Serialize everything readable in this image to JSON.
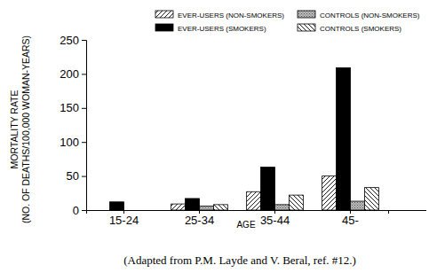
{
  "chart_data": {
    "type": "bar",
    "categories": [
      "15-24",
      "25-34",
      "35-44",
      "45-"
    ],
    "series": [
      {
        "name": "EVER-USERS (NON-SMOKERS)",
        "color": "#000000",
        "line_style": "forward-hatch",
        "values": [
          0,
          9,
          27,
          50
        ]
      },
      {
        "name": "EVER-USERS (SMOKERS)",
        "color": "#000000",
        "line_style": "solid",
        "values": [
          12,
          17,
          63,
          209
        ]
      },
      {
        "name": "CONTROLS (NON-SMOKERS)",
        "color": "#555555",
        "line_style": "dots",
        "values": [
          0,
          6,
          8,
          13
        ]
      },
      {
        "name": "CONTROLS (SMOKERS)",
        "color": "#000000",
        "line_style": "back-hatch",
        "values": [
          0,
          8,
          22,
          33
        ]
      }
    ],
    "x_label": "AGE",
    "y_label": [
      "MORTALITY RATE",
      "(NO. OF DEATHS/100,000 WOMAN-YEARS)"
    ],
    "caption": "(Adapted from P.M. Layde and V. Beral, ref. #12.)",
    "ylim": [
      0,
      250
    ],
    "yticks": [
      0,
      50,
      100,
      150,
      200,
      250
    ],
    "legend": "top",
    "grid": false
  }
}
